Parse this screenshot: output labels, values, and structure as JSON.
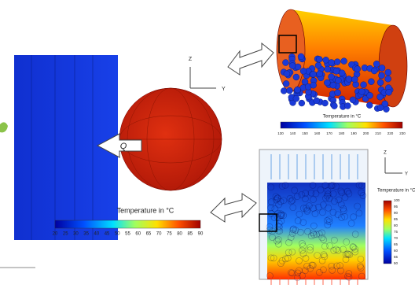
{
  "labels": {
    "heat_flux": "Q"
  },
  "axes": [
    {
      "z": "Z",
      "y": "Y"
    },
    {
      "z": "Z",
      "y": "Y"
    }
  ],
  "colorbars": [
    {
      "title": "Temperature in °C",
      "ticks": [
        20,
        25,
        30,
        35,
        40,
        45,
        50,
        55,
        60,
        65,
        70,
        75,
        80,
        85,
        90
      ]
    },
    {
      "title": "Temperature in °C",
      "ticks": [
        130,
        140,
        150,
        160,
        170,
        180,
        190,
        200,
        210,
        220,
        230
      ]
    },
    {
      "title": "Temperature in °C",
      "ticks": [
        100,
        95,
        90,
        85,
        80,
        75,
        70,
        65,
        60,
        55,
        50
      ]
    }
  ]
}
